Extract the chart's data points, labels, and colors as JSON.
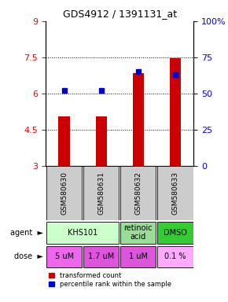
{
  "title": "GDS4912 / 1391131_at",
  "samples": [
    "GSM580630",
    "GSM580631",
    "GSM580632",
    "GSM580633"
  ],
  "bar_values": [
    5.05,
    5.05,
    6.85,
    7.45
  ],
  "bar_base": 3.0,
  "blue_dot_percentile": [
    52,
    52,
    65,
    63
  ],
  "ylim": [
    3,
    9
  ],
  "yticks_left": [
    3,
    4.5,
    6,
    7.5,
    9
  ],
  "yticks_right": [
    0,
    25,
    50,
    75,
    100
  ],
  "yticks_right_labels": [
    "0",
    "25",
    "50",
    "75",
    "100%"
  ],
  "dotted_lines": [
    4.5,
    6.0,
    7.5
  ],
  "bar_color": "#cc0000",
  "dot_color": "#0000cc",
  "agent_groups": [
    {
      "label": "KHS101",
      "cols": [
        0,
        1
      ],
      "color": "#ccffcc"
    },
    {
      "label": "retinoic\nacid",
      "cols": [
        2
      ],
      "color": "#99dd99"
    },
    {
      "label": "DMSO",
      "cols": [
        3
      ],
      "color": "#33cc33"
    }
  ],
  "dose_labels": [
    "5 uM",
    "1.7 uM",
    "1 uM",
    "0.1 %"
  ],
  "dose_colors": [
    "#ee66ee",
    "#dd55dd",
    "#dd55dd",
    "#ffaaff"
  ],
  "sample_bg_color": "#cccccc",
  "legend_bar_label": "transformed count",
  "legend_dot_label": "percentile rank within the sample"
}
